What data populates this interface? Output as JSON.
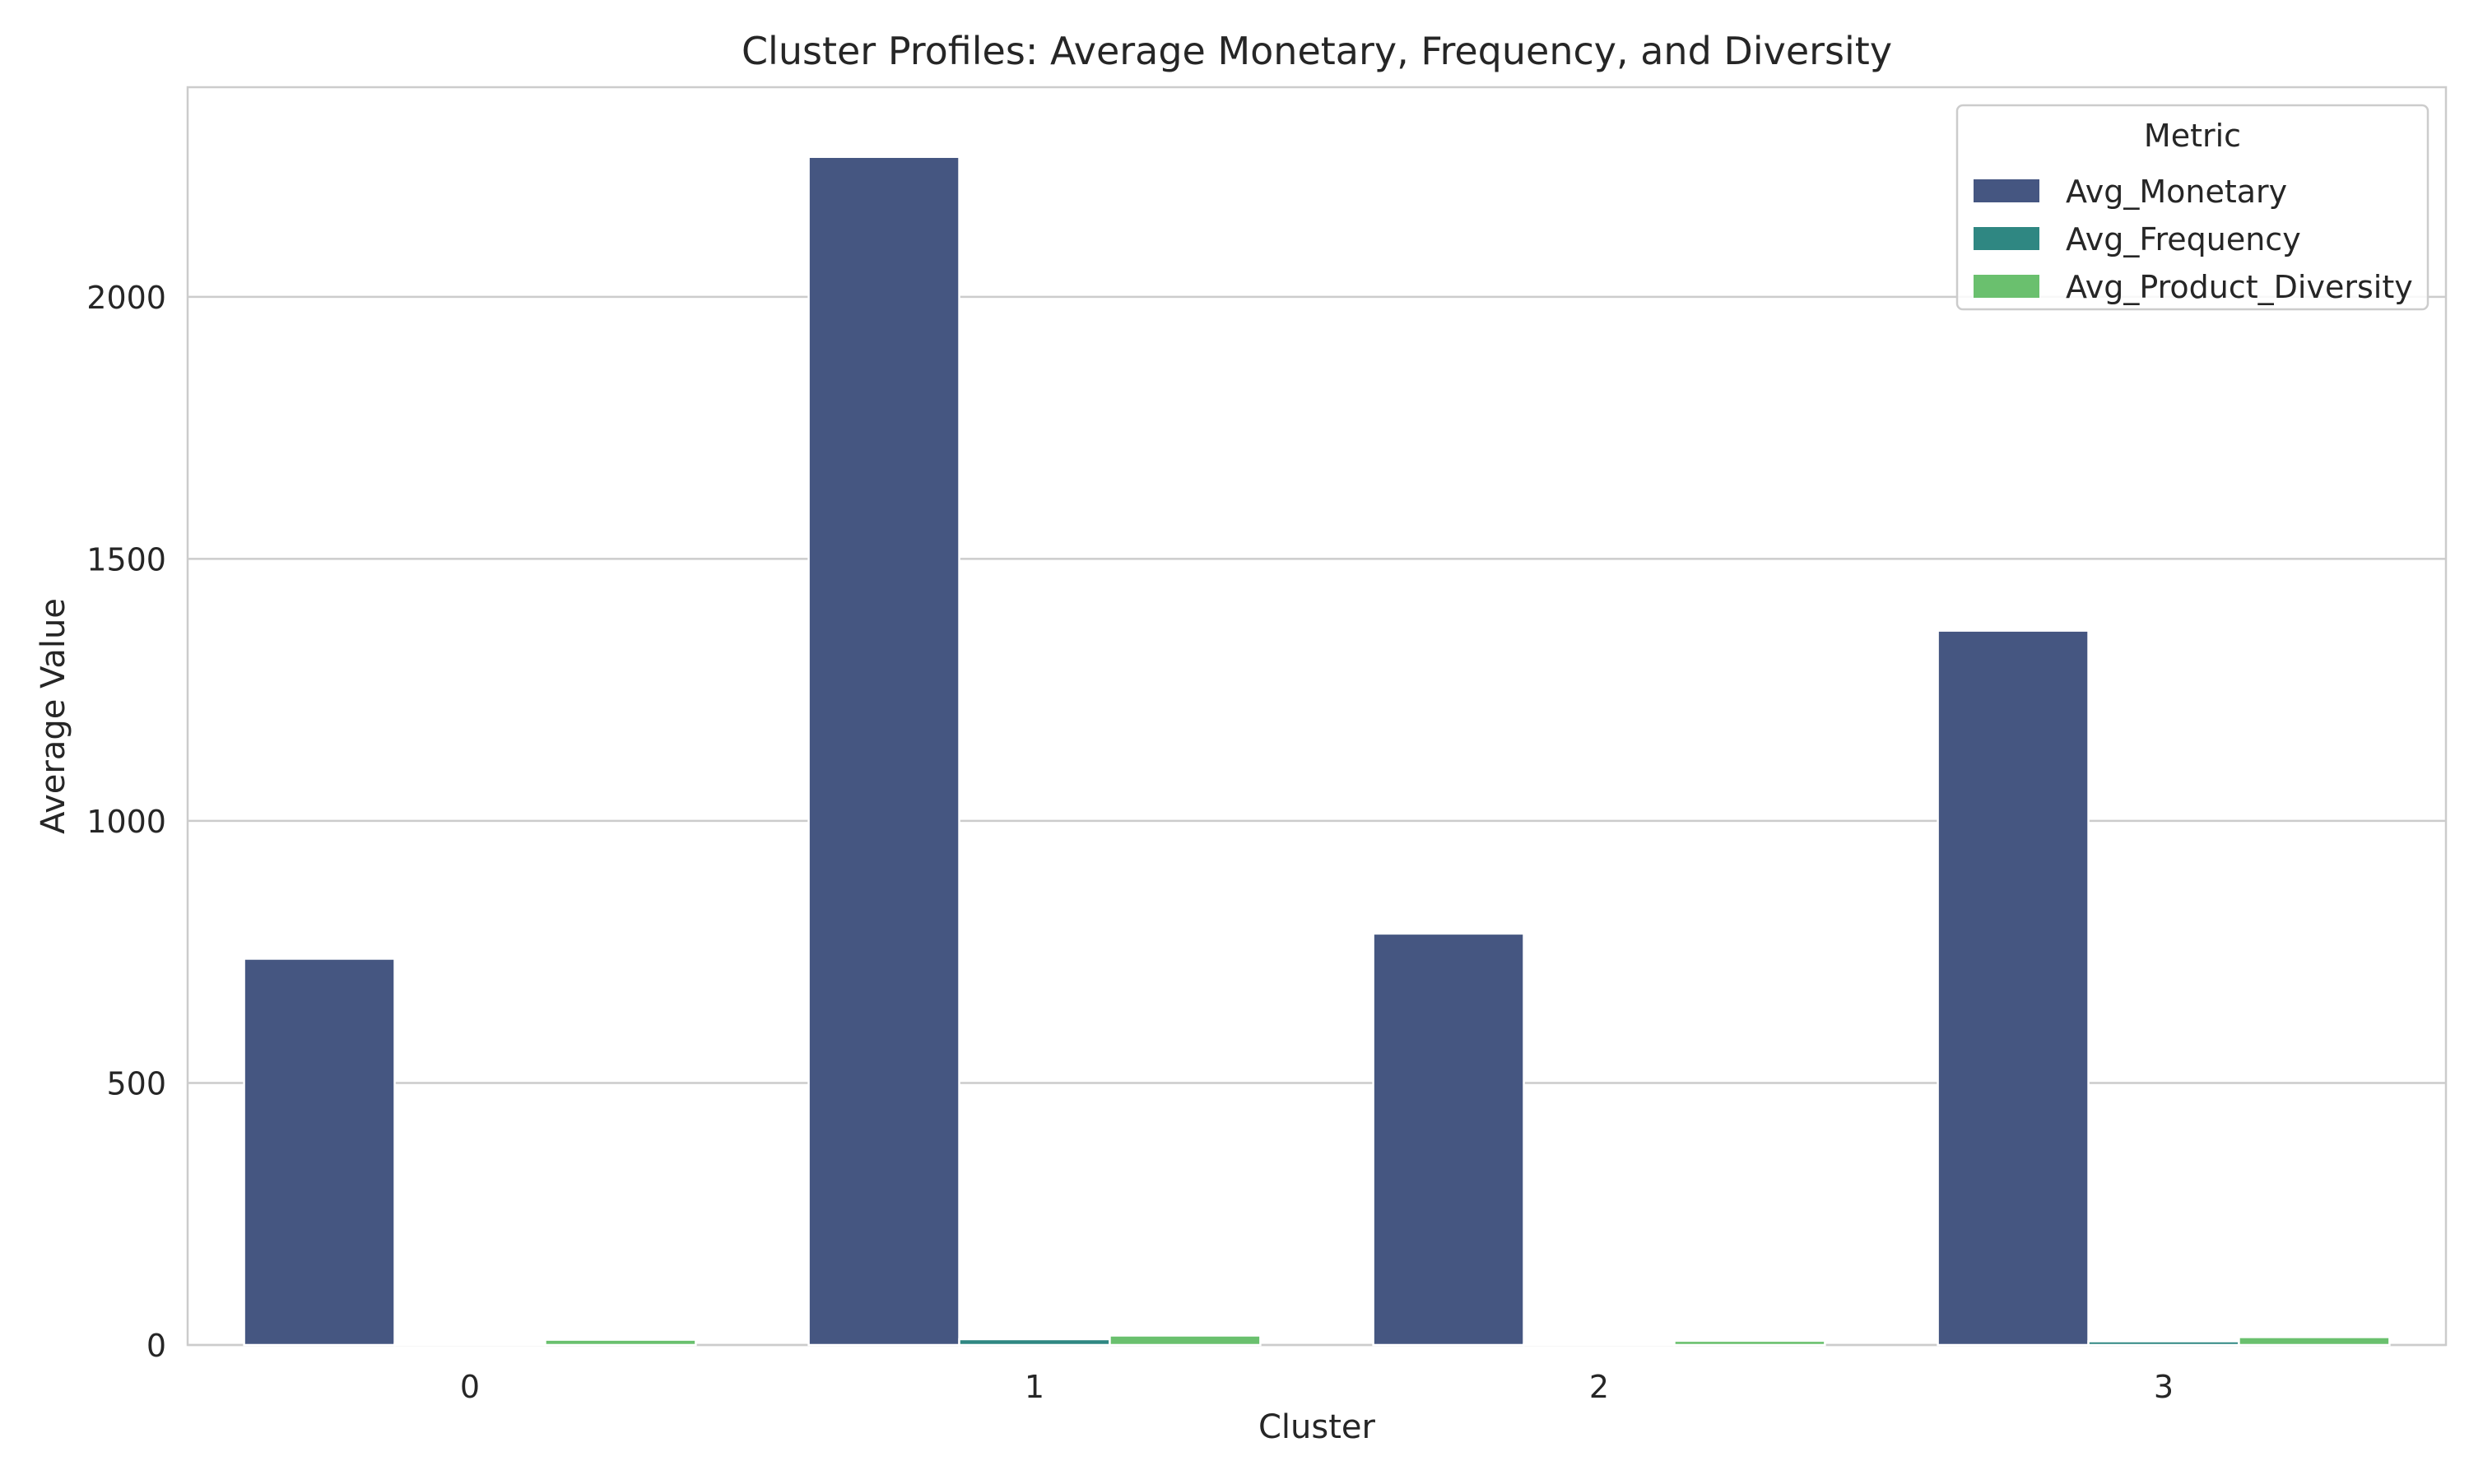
{
  "chart_data": {
    "type": "bar",
    "title": "Cluster Profiles: Average Monetary, Frequency, and Diversity",
    "xlabel": "Cluster",
    "ylabel": "Average Value",
    "categories": [
      "0",
      "1",
      "2",
      "3"
    ],
    "series": [
      {
        "name": "Avg_Monetary",
        "color": "#455681",
        "values": [
          737,
          2267,
          785,
          1363
        ]
      },
      {
        "name": "Avg_Frequency",
        "color": "#2f8782",
        "values": [
          2,
          11,
          1.5,
          7
        ]
      },
      {
        "name": "Avg_Product_Diversity",
        "color": "#6ac06e",
        "values": [
          10,
          18,
          8,
          15
        ]
      }
    ],
    "ylim": [
      0,
      2400
    ],
    "yticks": [
      0,
      500,
      1000,
      1500,
      2000
    ],
    "grid": true,
    "legend": {
      "title": "Metric",
      "placement": "top-right"
    }
  }
}
